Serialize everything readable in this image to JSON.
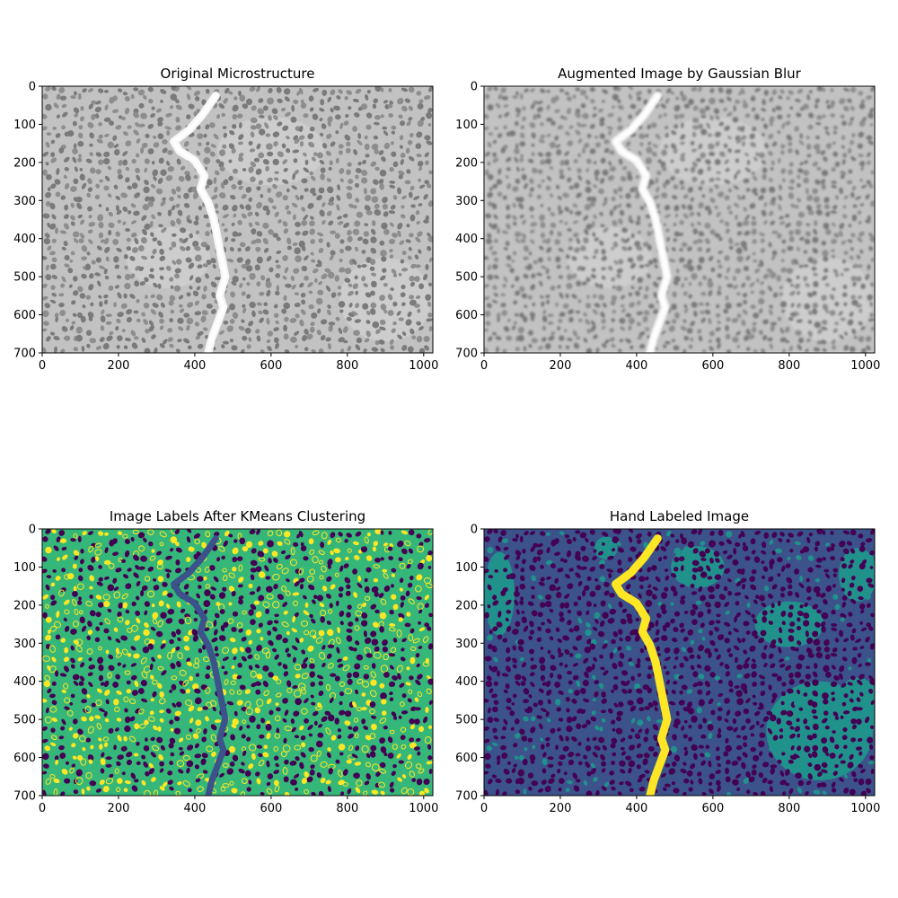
{
  "figure": {
    "panels": [
      {
        "id": "original",
        "title": "Original Microstructure",
        "colormap": "gray",
        "x_ticks": [
          0,
          200,
          400,
          600,
          800,
          1000
        ],
        "y_ticks": [
          0,
          100,
          200,
          300,
          400,
          500,
          600,
          700
        ],
        "x_range": [
          0,
          1024
        ],
        "y_range": [
          0,
          700
        ]
      },
      {
        "id": "blurred",
        "title": "Augmented Image by Gaussian Blur",
        "colormap": "gray",
        "x_ticks": [
          0,
          200,
          400,
          600,
          800,
          1000
        ],
        "y_ticks": [
          0,
          100,
          200,
          300,
          400,
          500,
          600,
          700
        ],
        "x_range": [
          0,
          1024
        ],
        "y_range": [
          0,
          700
        ]
      },
      {
        "id": "kmeans",
        "title": "Image Labels After KMeans Clustering",
        "colormap": "viridis",
        "x_ticks": [
          0,
          200,
          400,
          600,
          800,
          1000
        ],
        "y_ticks": [
          0,
          100,
          200,
          300,
          400,
          500,
          600,
          700
        ],
        "x_range": [
          0,
          1024
        ],
        "y_range": [
          0,
          700
        ]
      },
      {
        "id": "hand",
        "title": "Hand Labeled Image",
        "colormap": "viridis",
        "x_ticks": [
          0,
          200,
          400,
          600,
          800,
          1000
        ],
        "y_ticks": [
          0,
          100,
          200,
          300,
          400,
          500,
          600,
          700
        ],
        "x_range": [
          0,
          1024
        ],
        "y_range": [
          0,
          700
        ]
      }
    ],
    "crack_path": [
      [
        455,
        25
      ],
      [
        420,
        75
      ],
      [
        385,
        115
      ],
      [
        345,
        145
      ],
      [
        360,
        170
      ],
      [
        400,
        195
      ],
      [
        425,
        235
      ],
      [
        415,
        270
      ],
      [
        435,
        305
      ],
      [
        450,
        350
      ],
      [
        460,
        400
      ],
      [
        470,
        450
      ],
      [
        480,
        500
      ],
      [
        465,
        550
      ],
      [
        475,
        580
      ],
      [
        460,
        620
      ],
      [
        445,
        660
      ],
      [
        435,
        700
      ]
    ],
    "colors": {
      "gray_bg": "#c2c2c2",
      "gray_dark": "#6b6b6b",
      "gray_crack": "#f7f7f7",
      "viridis_0": "#440154",
      "viridis_1": "#3b528b",
      "viridis_2": "#21918c",
      "viridis_3": "#35b779",
      "viridis_4": "#fde725"
    }
  }
}
